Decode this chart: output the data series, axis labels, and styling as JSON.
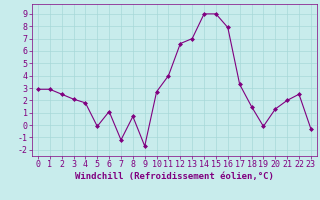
{
  "x": [
    0,
    1,
    2,
    3,
    4,
    5,
    6,
    7,
    8,
    9,
    10,
    11,
    12,
    13,
    14,
    15,
    16,
    17,
    18,
    19,
    20,
    21,
    22,
    23
  ],
  "y": [
    2.9,
    2.9,
    2.5,
    2.1,
    1.8,
    -0.1,
    1.1,
    -1.2,
    0.7,
    -1.7,
    2.7,
    4.0,
    6.6,
    7.0,
    9.0,
    9.0,
    7.9,
    3.3,
    1.5,
    -0.1,
    1.3,
    2.0,
    2.5,
    -0.3
  ],
  "line_color": "#800080",
  "marker": "D",
  "marker_size": 2,
  "bg_color": "#c8ecec",
  "grid_color": "#a8d8d8",
  "xlabel": "Windchill (Refroidissement éolien,°C)",
  "ylim": [
    -2.5,
    9.8
  ],
  "xlim": [
    -0.5,
    23.5
  ],
  "yticks": [
    -2,
    -1,
    0,
    1,
    2,
    3,
    4,
    5,
    6,
    7,
    8,
    9
  ],
  "xticks": [
    0,
    1,
    2,
    3,
    4,
    5,
    6,
    7,
    8,
    9,
    10,
    11,
    12,
    13,
    14,
    15,
    16,
    17,
    18,
    19,
    20,
    21,
    22,
    23
  ],
  "tick_color": "#800080",
  "label_color": "#800080",
  "label_fontsize": 6.5,
  "tick_fontsize": 6
}
